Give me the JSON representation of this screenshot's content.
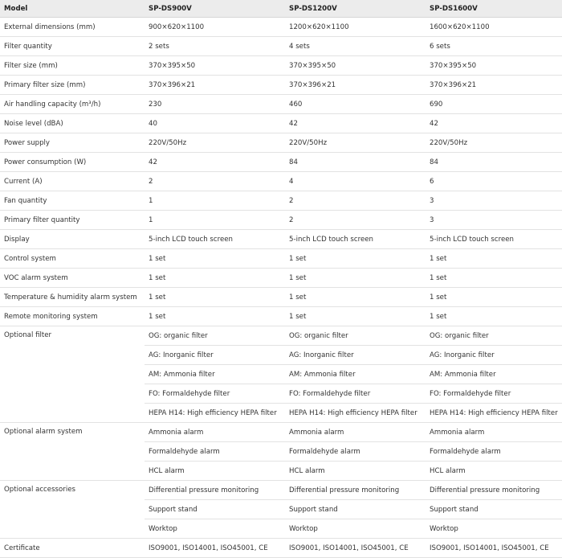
{
  "table": {
    "header": [
      "Model",
      "SP-DS900V",
      "SP-DS1200V",
      "SP-DS1600V"
    ],
    "rows": [
      {
        "label": "External dimensions (mm)",
        "cells": [
          [
            "900×620×1100",
            "1200×620×1100",
            "1600×620×1100"
          ]
        ]
      },
      {
        "label": "Filter quantity",
        "cells": [
          [
            "2 sets",
            "4 sets",
            "6 sets"
          ]
        ]
      },
      {
        "label": "Filter size (mm)",
        "cells": [
          [
            "370×395×50",
            "370×395×50",
            "370×395×50"
          ]
        ]
      },
      {
        "label": "Primary filter size (mm)",
        "cells": [
          [
            "370×396×21",
            "370×396×21",
            "370×396×21"
          ]
        ]
      },
      {
        "label": "Air handling capacity (m³/h)",
        "cells": [
          [
            "230",
            "460",
            "690"
          ]
        ]
      },
      {
        "label": "Noise level (dBA)",
        "cells": [
          [
            "40",
            "42",
            "42"
          ]
        ]
      },
      {
        "label": "Power supply",
        "cells": [
          [
            "220V/50Hz",
            "220V/50Hz",
            "220V/50Hz"
          ]
        ]
      },
      {
        "label": "Power consumption (W)",
        "cells": [
          [
            "42",
            "84",
            "84"
          ]
        ]
      },
      {
        "label": "Current (A)",
        "cells": [
          [
            "2",
            "4",
            "6"
          ]
        ]
      },
      {
        "label": "Fan quantity",
        "cells": [
          [
            "1",
            "2",
            "3"
          ]
        ]
      },
      {
        "label": "Primary filter quantity",
        "cells": [
          [
            "1",
            "2",
            "3"
          ]
        ]
      },
      {
        "label": "Display",
        "cells": [
          [
            "5-inch LCD touch screen",
            "5-inch LCD touch screen",
            "5-inch LCD touch screen"
          ]
        ]
      },
      {
        "label": "Control system",
        "cells": [
          [
            "1 set",
            "1 set",
            "1 set"
          ]
        ]
      },
      {
        "label": "VOC alarm system",
        "cells": [
          [
            "1 set",
            "1 set",
            "1 set"
          ]
        ]
      },
      {
        "label": "Temperature & humidity alarm system",
        "cells": [
          [
            "1 set",
            "1 set",
            "1 set"
          ]
        ]
      },
      {
        "label": "Remote monitoring system",
        "cells": [
          [
            "1 set",
            "1 set",
            "1 set"
          ]
        ]
      },
      {
        "label": "Optional filter",
        "cells": [
          [
            "OG: organic filter",
            "OG: organic filter",
            "OG: organic filter"
          ],
          [
            "AG: Inorganic filter",
            "AG: Inorganic filter",
            "AG: Inorganic filter"
          ],
          [
            "AM: Ammonia filter",
            "AM: Ammonia filter",
            "AM: Ammonia filter"
          ],
          [
            "FO: Formaldehyde filter",
            "FO: Formaldehyde filter",
            "FO: Formaldehyde filter"
          ],
          [
            "HEPA H14: High efficiency HEPA filter",
            "HEPA H14: High efficiency HEPA filter",
            "HEPA H14: High efficiency HEPA filter"
          ]
        ]
      },
      {
        "label": "Optional alarm system",
        "cells": [
          [
            "Ammonia alarm",
            "Ammonia alarm",
            "Ammonia alarm"
          ],
          [
            "Formaldehyde alarm",
            "Formaldehyde alarm",
            "Formaldehyde alarm"
          ],
          [
            "HCL alarm",
            "HCL alarm",
            "HCL alarm"
          ]
        ]
      },
      {
        "label": "Optional accessories",
        "cells": [
          [
            "Differential pressure monitoring",
            "Differential pressure monitoring",
            "Differential pressure monitoring"
          ],
          [
            "Support stand",
            "Support stand",
            "Support stand"
          ],
          [
            "Worktop",
            "Worktop",
            "Worktop"
          ]
        ]
      },
      {
        "label": "Certificate",
        "cells": [
          [
            "ISO9001, ISO14001, ISO45001, CE",
            "ISO9001, ISO14001, ISO45001, CE",
            "ISO9001, ISO14001, ISO45001, CE"
          ]
        ]
      }
    ]
  }
}
